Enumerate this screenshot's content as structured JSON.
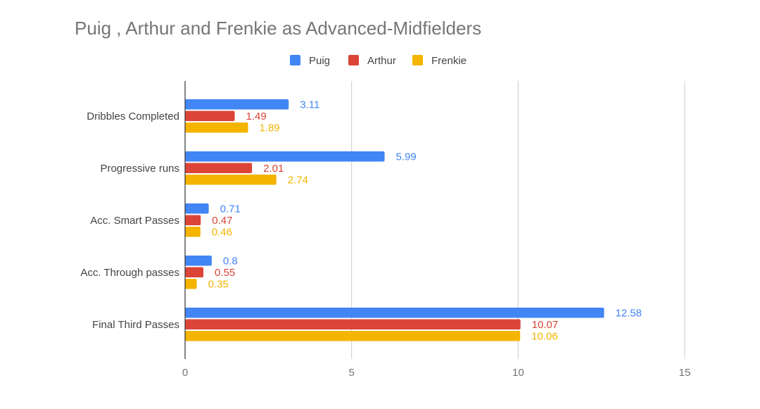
{
  "chart_data": {
    "type": "bar",
    "orientation": "horizontal",
    "title": "Puig , Arthur and Frenkie as Advanced-Midfielders",
    "categories": [
      "Dribbles Completed",
      "Progressive runs",
      "Acc. Smart Passes",
      "Acc. Through passes",
      "Final Third Passes"
    ],
    "series": [
      {
        "name": "Puig",
        "color": "#4285f4",
        "values": [
          3.11,
          5.99,
          0.71,
          0.8,
          12.58
        ]
      },
      {
        "name": "Arthur",
        "color": "#db4437",
        "values": [
          1.49,
          2.01,
          0.47,
          0.55,
          10.07
        ]
      },
      {
        "name": "Frenkie",
        "color": "#f4b400",
        "values": [
          1.89,
          2.74,
          0.46,
          0.35,
          10.06
        ]
      }
    ],
    "xlim": [
      0,
      15
    ],
    "xticks": [
      0,
      5,
      10,
      15
    ],
    "data_labels": [
      [
        "3.11",
        "5.99",
        "0.71",
        "0.8",
        "12.58"
      ],
      [
        "1.49",
        "2.01",
        "0.47",
        "0.55",
        "10.07"
      ],
      [
        "1.89",
        "2.74",
        "0.46",
        "0.35",
        "10.06"
      ]
    ],
    "legend_position": "top",
    "grid": true
  }
}
